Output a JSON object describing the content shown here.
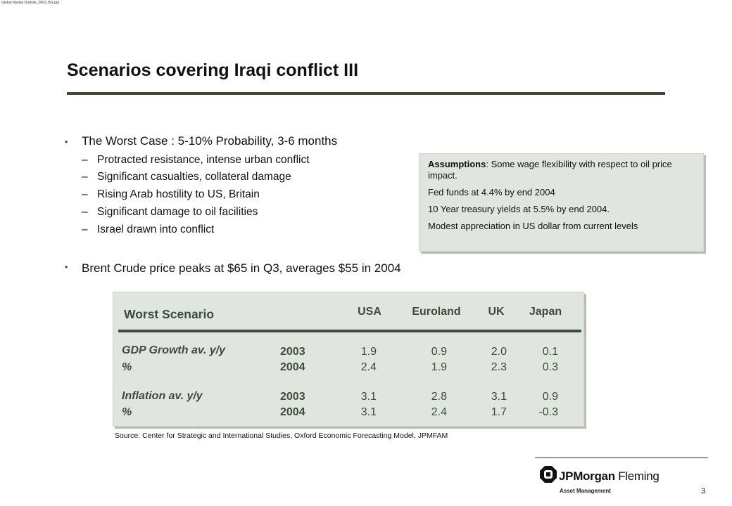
{
  "file_tag": "Global Market Outlook_2003_BG.ppt",
  "title": "Scenarios covering Iraqi conflict III",
  "bullets": [
    {
      "text": "The Worst Case : 5-10% Probability, 3-6 months",
      "subs": [
        "Protracted resistance, intense urban conflict",
        "Significant casualties, collateral damage",
        "Rising Arab hostility to US, Britain",
        "Significant damage to oil facilities",
        "Israel drawn into conflict"
      ]
    },
    {
      "text": "Brent Crude price peaks at $65 in Q3, averages $55 in 2004"
    }
  ],
  "sub_dash": "–",
  "assumptions": {
    "label": "Assumptions",
    "lines": [
      ":  Some wage flexibility with respect to oil price impact.",
      "Fed funds at 4.4% by end 2004",
      "10 Year treasury yields at 5.5% by end 2004.",
      "Modest appreciation in US dollar from current levels"
    ]
  },
  "table": {
    "title": "Worst Scenario",
    "columns": [
      "USA",
      "Euroland",
      "UK",
      "Japan"
    ],
    "groups": [
      {
        "label_line1": "GDP Growth av. y/y",
        "label_line2": "%",
        "rows": [
          {
            "year": "2003",
            "values": [
              "1.9",
              "0.9",
              "2.0",
              "0.1"
            ]
          },
          {
            "year": "2004",
            "values": [
              "2.4",
              "1.9",
              "2.3",
              "0.3"
            ]
          }
        ]
      },
      {
        "label_line1": "Inflation av. y/y",
        "label_line2": "%",
        "rows": [
          {
            "year": "2003",
            "values": [
              "3.1",
              "2.8",
              "3.1",
              "0.9"
            ]
          },
          {
            "year": "2004",
            "values": [
              "3.1",
              "2.4",
              "1.7",
              "-0.3"
            ]
          }
        ]
      }
    ]
  },
  "source": "Source: Center for Strategic and International Studies, Oxford Economic Forecasting Model, JPMFAM",
  "logo": {
    "brand_bold": "JPMorgan",
    "brand_light": " Fleming",
    "tagline": "Asset Management"
  },
  "page_number": "3"
}
